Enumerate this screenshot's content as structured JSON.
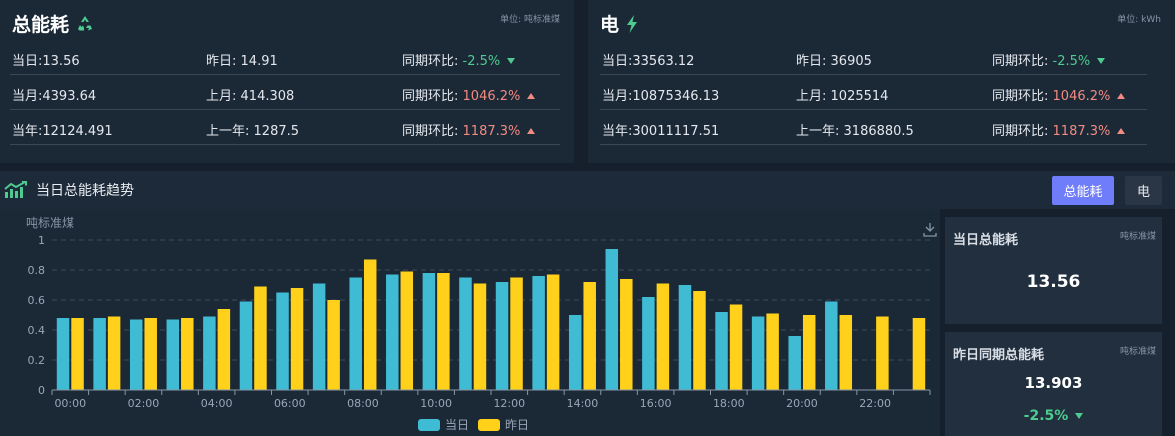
{
  "total_panel": {
    "title": "总能耗",
    "unit": "单位: 吨标准煤",
    "rows": [
      {
        "cur_label": "当日:",
        "cur_value": "13.56",
        "prev_label": "昨日:",
        "prev_value": "14.91",
        "cmp_label": "同期环比:",
        "cmp_value": "-2.5%",
        "trend": "down"
      },
      {
        "cur_label": "当月:",
        "cur_value": "4393.64",
        "prev_label": "上月:",
        "prev_value": "414.308",
        "cmp_label": "同期环比:",
        "cmp_value": "1046.2%",
        "trend": "up"
      },
      {
        "cur_label": "当年:",
        "cur_value": "12124.491",
        "prev_label": "上一年:",
        "prev_value": "1287.5",
        "cmp_label": "同期环比:",
        "cmp_value": "1187.3%",
        "trend": "up"
      }
    ]
  },
  "elec_panel": {
    "title": "电",
    "unit": "单位: kWh",
    "rows": [
      {
        "cur_label": "当日:",
        "cur_value": "33563.12",
        "prev_label": "昨日:",
        "prev_value": "36905",
        "cmp_label": "同期环比:",
        "cmp_value": "-2.5%",
        "trend": "down"
      },
      {
        "cur_label": "当月:",
        "cur_value": "10875346.13",
        "prev_label": "上月:",
        "prev_value": "1025514",
        "cmp_label": "同期环比:",
        "cmp_value": "1046.2%",
        "trend": "up"
      },
      {
        "cur_label": "当年:",
        "cur_value": "30011117.51",
        "prev_label": "上一年:",
        "prev_value": "3186880.5",
        "cmp_label": "同期环比:",
        "cmp_value": "1187.3%",
        "trend": "up"
      }
    ]
  },
  "trend": {
    "title": "当日总能耗趋势",
    "tabs": [
      {
        "label": "总能耗",
        "active": true
      },
      {
        "label": "电",
        "active": false
      }
    ]
  },
  "side": {
    "today": {
      "title": "当日总能耗",
      "unit": "吨标准煤",
      "value": "13.56"
    },
    "yesterday": {
      "title": "昨日同期总能耗",
      "unit": "吨标准煤",
      "value": "13.903",
      "change": "-2.5%",
      "trend": "down"
    }
  },
  "colors": {
    "today": "#3fbcd4",
    "yesterday": "#ffd11a",
    "up": "#f28b82",
    "down": "#4ecb8f",
    "accent": "#6f7dfa"
  },
  "chart_data": {
    "type": "bar",
    "ylabel": "吨标准煤",
    "ylim": [
      0,
      1
    ],
    "yticks": [
      "0",
      "0.2",
      "0.4",
      "0.6",
      "0.8",
      "1"
    ],
    "categories": [
      "00:00",
      "01:00",
      "02:00",
      "03:00",
      "04:00",
      "05:00",
      "06:00",
      "07:00",
      "08:00",
      "09:00",
      "10:00",
      "11:00",
      "12:00",
      "13:00",
      "14:00",
      "15:00",
      "16:00",
      "17:00",
      "18:00",
      "19:00",
      "20:00",
      "21:00",
      "22:00",
      "23:00"
    ],
    "xtick_labels": [
      "00:00",
      "",
      "02:00",
      "",
      "04:00",
      "",
      "06:00",
      "",
      "08:00",
      "",
      "10:00",
      "",
      "12:00",
      "",
      "14:00",
      "",
      "16:00",
      "",
      "18:00",
      "",
      "20:00",
      "",
      "22:00",
      ""
    ],
    "legend_position": "bottom",
    "series": [
      {
        "name": "当日",
        "values": [
          0.48,
          0.48,
          0.47,
          0.47,
          0.49,
          0.59,
          0.65,
          0.71,
          0.75,
          0.77,
          0.78,
          0.75,
          0.72,
          0.76,
          0.5,
          0.94,
          0.62,
          0.7,
          0.52,
          0.49,
          0.36,
          0.59,
          null,
          null
        ]
      },
      {
        "name": "昨日",
        "values": [
          0.48,
          0.49,
          0.48,
          0.48,
          0.54,
          0.69,
          0.68,
          0.6,
          0.87,
          0.79,
          0.78,
          0.71,
          0.75,
          0.77,
          0.72,
          0.74,
          0.71,
          0.66,
          0.57,
          0.51,
          0.5,
          0.5,
          0.49,
          0.48
        ]
      }
    ]
  }
}
